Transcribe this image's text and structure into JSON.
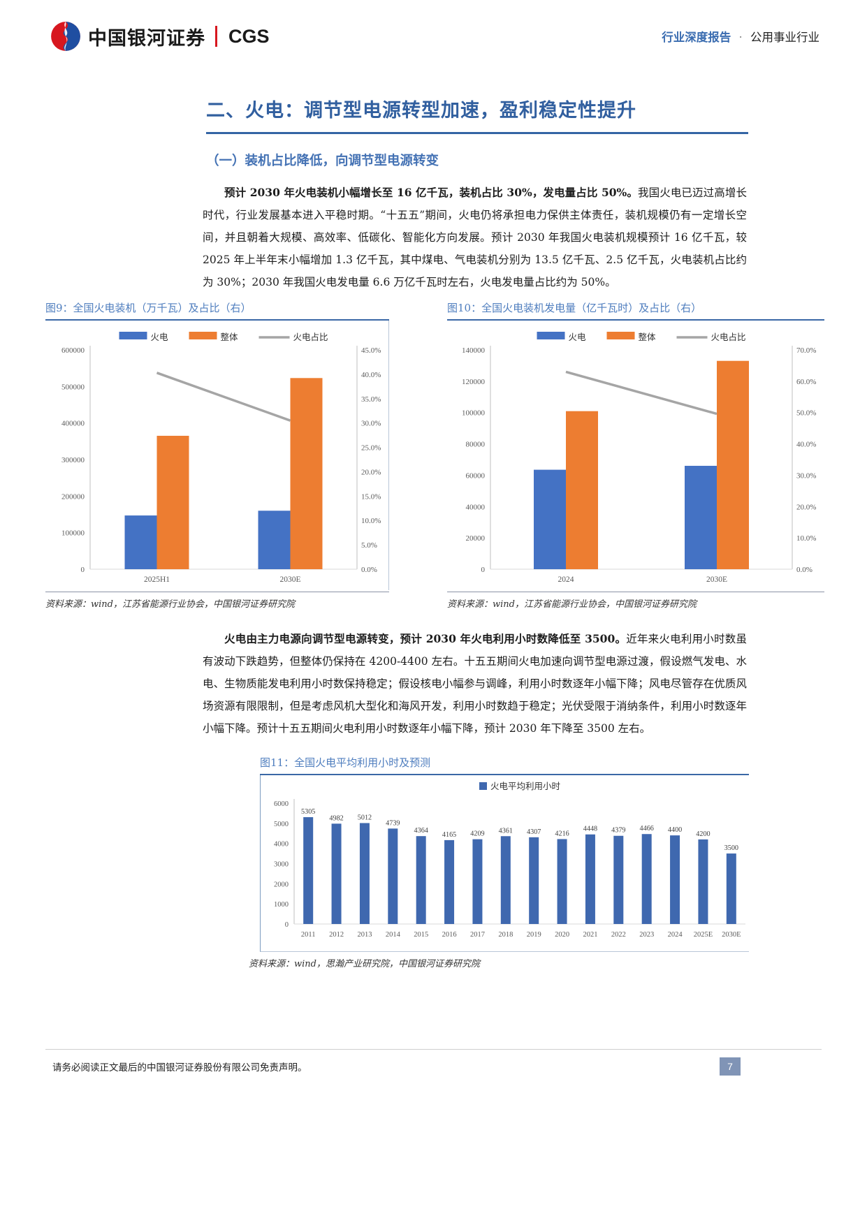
{
  "header": {
    "logo_cn": "中国银河证券",
    "logo_en": "CGS",
    "doc_type": "行业深度报告",
    "separator": "·",
    "industry": "公用事业行业"
  },
  "section": {
    "title": "二、火电：调节型电源转型加速，盈利稳定性提升",
    "subtitle": "（一）装机占比降低，向调节型电源转变"
  },
  "paragraphs": [
    {
      "lead": "预计 2030 年火电装机小幅增长至 16 亿千瓦，装机占比 30%，发电量占比 50%。",
      "rest": "我国火电已迈过高增长时代，行业发展基本进入平稳时期。“十五五”期间，火电仍将承担电力保供主体责任，装机规模仍有一定增长空间，并且朝着大规模、高效率、低碳化、智能化方向发展。预计 2030 年我国火电装机规模预计 16 亿千瓦，较 2025 年上半年末小幅增加 1.3 亿千瓦，其中煤电、气电装机分别为 13.5 亿千瓦、2.5 亿千瓦，火电装机占比约为 30%；2030 年我国火电发电量 6.6 万亿千瓦时左右，火电发电量占比约为 50%。"
    },
    {
      "lead": "火电由主力电源向调节型电源转变，预计 2030 年火电利用小时数降低至 3500。",
      "rest": "近年来火电利用小时数虽有波动下跌趋势，但整体仍保持在 4200-4400 左右。十五五期间火电加速向调节型电源过渡，假设燃气发电、水电、生物质能发电利用小时数保持稳定；假设核电小幅参与调峰，利用小时数逐年小幅下降；风电尽管存在优质风场资源有限限制，但是考虑风机大型化和海风开发，利用小时数趋于稳定；光伏受限于消纳条件，利用小时数逐年小幅下降。预计十五五期间火电利用小时数逐年小幅下降，预计 2030 年下降至 3500 左右。"
    }
  ],
  "figures": [
    {
      "caption": "图9：全国火电装机（万千瓦）及占比（右）",
      "source": "资料来源：wind，江苏省能源行业协会，中国银河证券研究院"
    },
    {
      "caption": "图10：全国火电装机发电量（亿千瓦时）及占比（右）",
      "source": "资料来源：wind，江苏省能源行业协会，中国银河证券研究院"
    },
    {
      "caption": "图11：全国火电平均利用小时及预测",
      "source": "资料来源：wind，思瀚产业研究院，中国银河证券研究院"
    }
  ],
  "chart_data": [
    {
      "type": "bar",
      "subtype": "grouped-bar-with-line",
      "title": "全国火电装机（万千瓦）及占比（右）",
      "categories": [
        "2025H1",
        "2030E"
      ],
      "series": [
        {
          "name": "火电",
          "kind": "bar",
          "axis": "left",
          "color": "#4472c4",
          "values": [
            147000,
            160000
          ]
        },
        {
          "name": "整体",
          "kind": "bar",
          "axis": "left",
          "color": "#ed7d31",
          "values": [
            365000,
            523000
          ]
        },
        {
          "name": "火电占比",
          "kind": "line",
          "axis": "right",
          "color": "#a5a5a5",
          "values": [
            40.3,
            30.5
          ]
        }
      ],
      "left_axis": {
        "min": 0,
        "max": 600000,
        "step": 100000
      },
      "right_axis": {
        "min": 0,
        "max": 45,
        "step": 5,
        "suffix": "%",
        "decimals": 1
      },
      "legend_position": "top",
      "grid": false
    },
    {
      "type": "bar",
      "subtype": "grouped-bar-with-line",
      "title": "全国火电装机发电量（亿千瓦时）及占比（右）",
      "categories": [
        "2024",
        "2030E"
      ],
      "series": [
        {
          "name": "火电",
          "kind": "bar",
          "axis": "left",
          "color": "#4472c4",
          "values": [
            63500,
            66000
          ]
        },
        {
          "name": "整体",
          "kind": "bar",
          "axis": "left",
          "color": "#ed7d31",
          "values": [
            100900,
            133000
          ]
        },
        {
          "name": "火电占比",
          "kind": "line",
          "axis": "right",
          "color": "#a5a5a5",
          "values": [
            63.0,
            49.6
          ]
        }
      ],
      "left_axis": {
        "min": 0,
        "max": 140000,
        "step": 20000
      },
      "right_axis": {
        "min": 0,
        "max": 70,
        "step": 10,
        "suffix": "%",
        "decimals": 1
      },
      "legend_position": "top",
      "grid": false
    },
    {
      "type": "bar",
      "title": "全国火电平均利用小时及预测",
      "legend": "火电平均利用小时",
      "categories": [
        "2011",
        "2012",
        "2013",
        "2014",
        "2015",
        "2016",
        "2017",
        "2018",
        "2019",
        "2020",
        "2021",
        "2022",
        "2023",
        "2024",
        "2025E",
        "2030E"
      ],
      "values": [
        5305,
        4982,
        5012,
        4739,
        4364,
        4165,
        4209,
        4361,
        4307,
        4216,
        4448,
        4379,
        4466,
        4400,
        4200,
        3500
      ],
      "bar_color": "#3f68af",
      "ylim": [
        0,
        6000
      ],
      "ystep": 1000,
      "show_value_labels": true,
      "legend_position": "top",
      "grid": false
    }
  ],
  "footer": {
    "disclaimer": "请务必阅读正文最后的中国银河证券股份有限公司免责声明。",
    "page_number": "7"
  },
  "colors": {
    "accent_blue": "#3465a4",
    "caption_blue": "#4e7dbe",
    "bar_blue": "#4472c4",
    "bar_orange": "#ed7d31",
    "line_gray": "#a5a5a5",
    "logo_red": "#d7171f",
    "logo_blue": "#1f4ea1",
    "badge_blue": "#8094b6"
  }
}
